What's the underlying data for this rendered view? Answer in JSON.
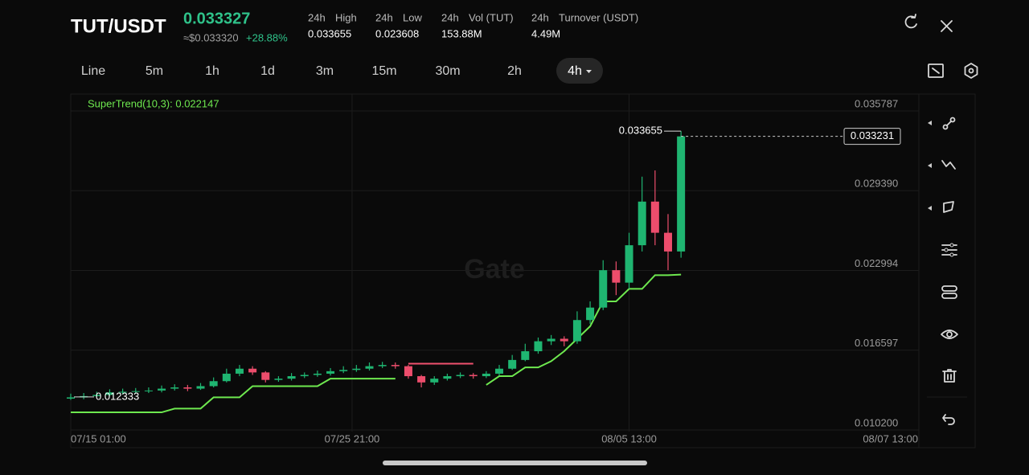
{
  "header": {
    "pair": "TUT/USDT",
    "price": "0.033327",
    "usd_price": "≈$0.033320",
    "change": "+28.88%",
    "stats": [
      {
        "period": "24h",
        "label": "High",
        "value": "0.033655"
      },
      {
        "period": "24h",
        "label": "Low",
        "value": "0.023608"
      },
      {
        "period": "24h",
        "label": "Vol (TUT)",
        "value": "153.88M"
      },
      {
        "period": "24h",
        "label": "Turnover (USDT)",
        "value": "4.49M"
      }
    ]
  },
  "timeframes": [
    "Line",
    "5m",
    "1h",
    "1d",
    "3m",
    "15m",
    "30m",
    "2h",
    "4h"
  ],
  "watermark": "Gate",
  "chart_data": {
    "type": "candlestick",
    "indicator_label": "SuperTrend(10,3): 0.022147",
    "x": [
      "07/15 01:00",
      "07/15 13:00",
      "07/16 01:00",
      "07/16 13:00",
      "07/17 01:00",
      "07/17 13:00",
      "07/18 01:00",
      "07/18 13:00",
      "07/19 01:00",
      "07/19 13:00",
      "07/20 01:00",
      "07/20 13:00",
      "07/21 01:00",
      "07/21 13:00",
      "07/22 01:00",
      "07/22 13:00",
      "07/23 01:00",
      "07/23 13:00",
      "07/24 01:00",
      "07/24 13:00",
      "07/25 01:00",
      "07/25 13:00",
      "07/26 01:00",
      "07/26 13:00",
      "07/27 01:00",
      "07/27 13:00",
      "07/28 01:00",
      "07/28 13:00",
      "07/29 01:00",
      "07/29 13:00",
      "07/30 01:00",
      "07/30 13:00",
      "07/31 01:00",
      "07/31 13:00",
      "08/01 01:00",
      "08/01 13:00",
      "08/02 01:00",
      "08/02 13:00",
      "08/03 01:00",
      "08/03 13:00",
      "08/04 01:00",
      "08/04 13:00",
      "08/05 01:00",
      "08/05 13:00",
      "08/06 01:00",
      "08/06 13:00",
      "08/07 01:00",
      "08/07 13:00"
    ],
    "open": [
      0.0122,
      0.0123,
      0.0124,
      0.0125,
      0.0127,
      0.01275,
      0.0128,
      0.01285,
      0.013,
      0.0131,
      0.013,
      0.0132,
      0.0136,
      0.0142,
      0.0146,
      0.0143,
      0.0137,
      0.0138,
      0.014,
      0.0141,
      0.0142,
      0.0144,
      0.0145,
      0.0146,
      0.0148,
      0.0149,
      0.0148,
      0.014,
      0.0135,
      0.0138,
      0.014,
      0.0141,
      0.014,
      0.0142,
      0.0146,
      0.0153,
      0.016,
      0.0168,
      0.017,
      0.0168,
      0.0185,
      0.0195,
      0.0225,
      0.0215,
      0.0245,
      0.028,
      0.0255,
      0.024
    ],
    "high": [
      0.0126,
      0.01265,
      0.01275,
      0.01295,
      0.013,
      0.01305,
      0.0131,
      0.01325,
      0.01335,
      0.0133,
      0.01345,
      0.0139,
      0.0146,
      0.0149,
      0.0148,
      0.0144,
      0.014,
      0.01425,
      0.0143,
      0.01445,
      0.01465,
      0.0148,
      0.0149,
      0.0151,
      0.01515,
      0.0151,
      0.0149,
      0.0141,
      0.014,
      0.0142,
      0.0143,
      0.01425,
      0.0144,
      0.0149,
      0.0157,
      0.0166,
      0.0171,
      0.0173,
      0.0172,
      0.0192,
      0.02,
      0.0233,
      0.0232,
      0.0255,
      0.03,
      0.0305,
      0.027,
      0.033655
    ],
    "low": [
      0.0121,
      0.01215,
      0.012333,
      0.0124,
      0.01255,
      0.0126,
      0.01265,
      0.0127,
      0.01285,
      0.0128,
      0.0129,
      0.0131,
      0.0135,
      0.014,
      0.0141,
      0.0135,
      0.01355,
      0.01365,
      0.01385,
      0.01395,
      0.01405,
      0.01425,
      0.01435,
      0.01445,
      0.01465,
      0.0146,
      0.0138,
      0.0131,
      0.0133,
      0.01365,
      0.01385,
      0.0138,
      0.01385,
      0.01405,
      0.0145,
      0.0152,
      0.0158,
      0.0165,
      0.0164,
      0.0166,
      0.0182,
      0.0193,
      0.0205,
      0.021,
      0.024,
      0.0245,
      0.0225,
      0.0235
    ],
    "close": [
      0.0123,
      0.0124,
      0.0125,
      0.0127,
      0.01275,
      0.0128,
      0.01285,
      0.013,
      0.0131,
      0.013,
      0.0132,
      0.0136,
      0.0142,
      0.0146,
      0.0143,
      0.0137,
      0.0138,
      0.014,
      0.0141,
      0.0142,
      0.0144,
      0.0145,
      0.0146,
      0.0148,
      0.0149,
      0.0148,
      0.014,
      0.0135,
      0.0138,
      0.014,
      0.0141,
      0.014,
      0.0142,
      0.0146,
      0.0153,
      0.016,
      0.0168,
      0.017,
      0.0168,
      0.0185,
      0.0195,
      0.0225,
      0.0215,
      0.0245,
      0.028,
      0.0255,
      0.024,
      0.03323
    ],
    "up_color": "#1fb571",
    "down_color": "#ec4d6c",
    "series": [
      {
        "color": "#6ee84f",
        "values": [
          0.0111,
          0.0111,
          0.0111,
          0.0111,
          0.0111,
          0.0111,
          0.0111,
          0.0111,
          0.0114,
          0.0114,
          0.0114,
          0.0123,
          0.0123,
          0.0123,
          0.0132,
          0.0132,
          0.0132,
          0.0132,
          0.0132,
          0.0132,
          0.0138,
          0.0138,
          0.0138,
          0.0138,
          0.0138,
          0.0138,
          null,
          null,
          null,
          null,
          null,
          null,
          0.0133,
          0.014,
          0.014,
          0.0147,
          0.0147,
          0.0152,
          0.016,
          0.017,
          0.018,
          0.02,
          0.02,
          0.021,
          0.021,
          0.0221,
          0.0221,
          0.02215
        ]
      },
      {
        "color": "#f0506e",
        "values": [
          null,
          null,
          null,
          null,
          null,
          null,
          null,
          null,
          null,
          null,
          null,
          null,
          null,
          null,
          null,
          null,
          null,
          null,
          null,
          null,
          null,
          null,
          null,
          null,
          null,
          null,
          0.015,
          0.015,
          0.015,
          0.015,
          0.015,
          0.015,
          null,
          null,
          null,
          null,
          null,
          null,
          null,
          null,
          null,
          null,
          null,
          null,
          null,
          null,
          null,
          null
        ]
      }
    ],
    "ylim": [
      0.0102,
      0.035787
    ],
    "yticks": [
      0.035787,
      {
        "value": 0.02939,
        "label": "0.029390"
      },
      0.022994,
      0.016597,
      {
        "value": 0.0102,
        "label": "0.010200"
      }
    ],
    "xticks": [
      "07/15 01:00",
      "07/25 21:00",
      "08/05 13:00"
    ],
    "x_end_label": "08/07 13:00",
    "high_marker": 0.033655,
    "low_marker": 0.012333,
    "current_price": 0.033231
  }
}
